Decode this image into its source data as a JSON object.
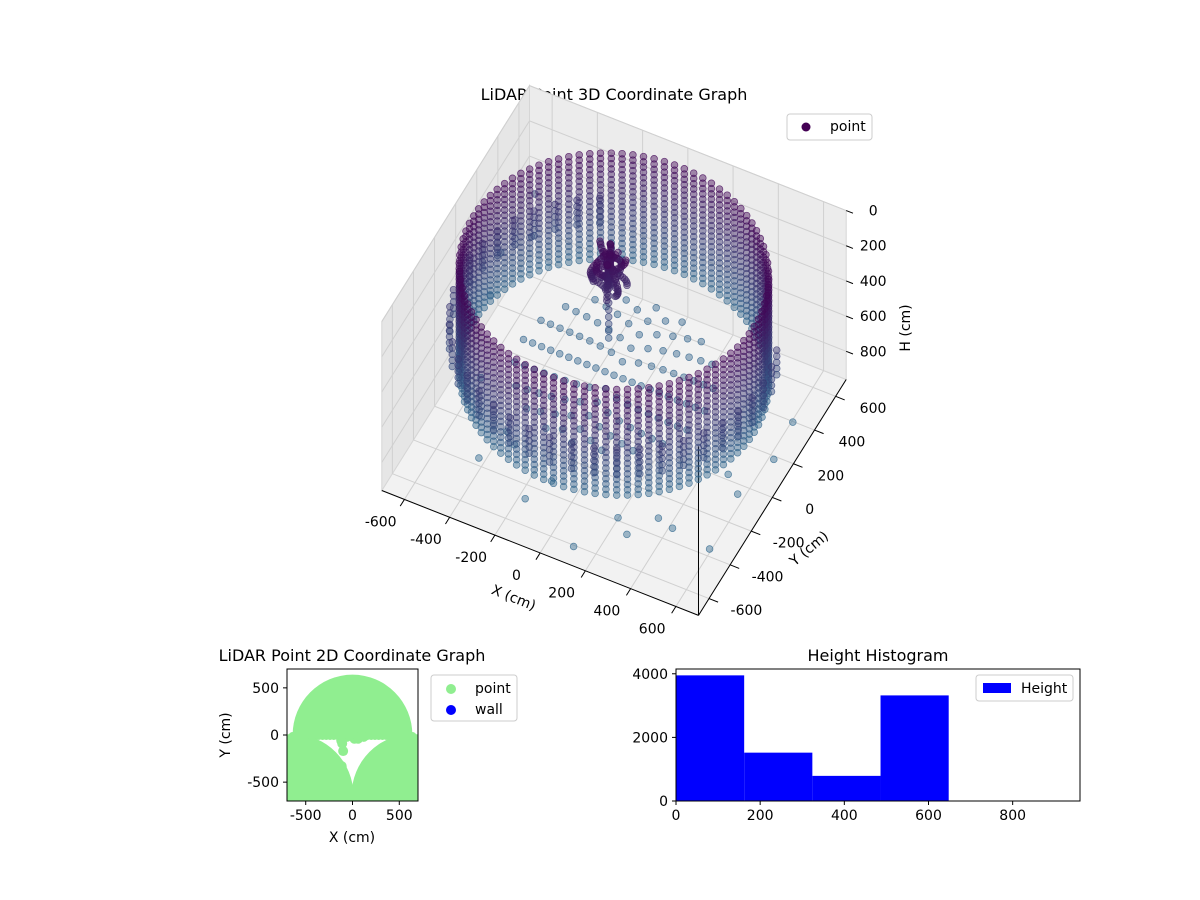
{
  "chart_data": [
    {
      "type": "scatter",
      "title": "LiDAR Point 3D Coordinate Graph",
      "xlabel": "X (cm)",
      "ylabel": "Y (cm)",
      "zlabel": "H (cm)",
      "xlim": [
        -700,
        700
      ],
      "ylim": [
        -700,
        700
      ],
      "zlim": [
        960,
        0
      ],
      "x_ticks": [
        "-600",
        "-400",
        "-200",
        "0",
        "200",
        "400",
        "600"
      ],
      "y_ticks": [
        "-600",
        "-400",
        "-200",
        "0",
        "200",
        "400",
        "600"
      ],
      "z_ticks": [
        "0",
        "200",
        "400",
        "600",
        "800"
      ],
      "legend": [
        "point"
      ],
      "legend_position": "top-right",
      "grid": true,
      "colormap": [
        "#440154",
        "#31688e"
      ],
      "structures": {
        "ring_wall": {
          "radius_cm": 620,
          "h_range": [
            30,
            650
          ]
        },
        "outer_posts": {
          "radius_cm": 660,
          "h_range": [
            330,
            500
          ]
        },
        "floor": {
          "radius_cm": 430,
          "h": 620
        },
        "central_object": {
          "x": -70,
          "y": 100,
          "h_range": [
            60,
            260
          ]
        },
        "stray_points": [
          {
            "x": -620,
            "y": 580,
            "h": 460
          },
          {
            "x": -640,
            "y": 200,
            "h": 680
          },
          {
            "x": -560,
            "y": -60,
            "h": 860
          },
          {
            "x": -420,
            "y": -380,
            "h": 940
          },
          {
            "x": -150,
            "y": -520,
            "h": 900
          },
          {
            "x": 120,
            "y": -640,
            "h": 920
          },
          {
            "x": 360,
            "y": -650,
            "h": 720
          },
          {
            "x": 520,
            "y": -560,
            "h": 690
          },
          {
            "x": 600,
            "y": -380,
            "h": 940
          },
          {
            "x": 640,
            "y": -200,
            "h": 780
          },
          {
            "x": 660,
            "y": 100,
            "h": 860
          },
          {
            "x": 660,
            "y": 280,
            "h": 820
          },
          {
            "x": -300,
            "y": -300,
            "h": 880
          },
          {
            "x": -80,
            "y": -420,
            "h": 860
          },
          {
            "x": 260,
            "y": -520,
            "h": 800
          },
          {
            "x": 420,
            "y": -480,
            "h": 760
          },
          {
            "x": -560,
            "y": 420,
            "h": 520
          },
          {
            "x": -650,
            "y": 320,
            "h": 560
          },
          {
            "x": 500,
            "y": 10,
            "h": 940
          },
          {
            "x": -380,
            "y": -200,
            "h": 940
          }
        ]
      }
    },
    {
      "type": "scatter",
      "title": "LiDAR Point 2D Coordinate Graph",
      "xlabel": "X (cm)",
      "ylabel": "Y (cm)",
      "xlim": [
        -700,
        700
      ],
      "ylim": [
        -700,
        700
      ],
      "x_ticks": [
        -500,
        0,
        500
      ],
      "y_ticks": [
        -500,
        0,
        500
      ],
      "legend_position": "right-outside",
      "series": [
        {
          "name": "point",
          "color": "#90ee90",
          "regions": {
            "upper_half_disk": {
              "radius_cm": 640,
              "y_range": [
                0,
                640
              ]
            },
            "lower_left_cap": {
              "center": [
                -640,
                -640
              ],
              "radius_cm": 250
            },
            "lower_right_cap": {
              "center": [
                640,
                -640
              ],
              "radius_cm": 250
            }
          },
          "points": [
            {
              "x": -120,
              "y": -60
            },
            {
              "x": -110,
              "y": -90
            },
            {
              "x": -100,
              "y": -170
            },
            {
              "x": -115,
              "y": -330
            },
            {
              "x": 20,
              "y": -40
            },
            {
              "x": 60,
              "y": -40
            },
            {
              "x": -60,
              "y": -20
            },
            {
              "x": 120,
              "y": -20
            }
          ]
        },
        {
          "name": "wall",
          "color": "#0000ff",
          "points": []
        }
      ]
    },
    {
      "type": "bar",
      "title": "Height Histogram",
      "x_ticks": [
        0,
        200,
        400,
        600,
        800
      ],
      "y_ticks": [
        0,
        2000,
        4000
      ],
      "xlim": [
        0,
        960
      ],
      "ylim": [
        0,
        4150
      ],
      "bins": [
        {
          "start": 0,
          "end": 162,
          "value": 3950
        },
        {
          "start": 162,
          "end": 324,
          "value": 1520
        },
        {
          "start": 324,
          "end": 486,
          "value": 790
        },
        {
          "start": 486,
          "end": 648,
          "value": 3320
        },
        {
          "start": 648,
          "end": 810,
          "value": 0
        },
        {
          "start": 810,
          "end": 960,
          "value": 0
        }
      ],
      "series": [
        {
          "name": "Height",
          "color": "#0000ff"
        }
      ],
      "legend_position": "top-right"
    }
  ]
}
